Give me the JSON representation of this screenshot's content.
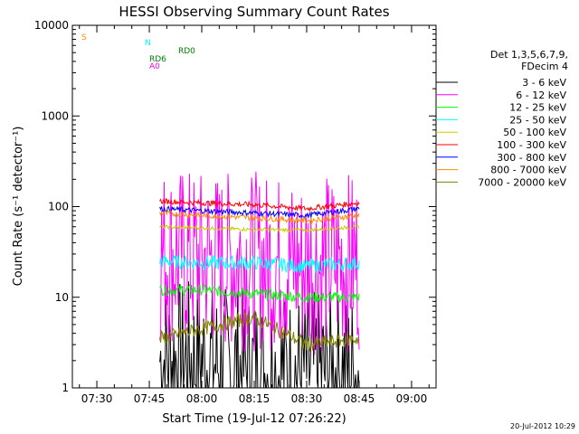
{
  "chart_data": {
    "type": "line",
    "title": "HESSI Observing Summary Count Rates",
    "xlabel": "Start Time (19-Jul-12 07:26:22)",
    "ylabel": "Count Rate (s⁻¹ detector⁻¹)",
    "yscale": "log",
    "ylim": [
      1,
      10000
    ],
    "xlim": [
      "07:23",
      "09:07"
    ],
    "x_ticks": [
      "07:30",
      "07:45",
      "08:00",
      "08:15",
      "08:30",
      "08:45",
      "09:00"
    ],
    "y_ticks": [
      "1",
      "10",
      "100",
      "1000",
      "10000"
    ],
    "grid": false,
    "legend_position": "right",
    "legend_header": [
      "Det 1,3,5,6,7,9,",
      "FDecim 4"
    ],
    "footer_date": "20-Jul-2012 10:29",
    "series": [
      {
        "name": "3 - 6 keV",
        "color": "#000000",
        "x": [
          "07:48",
          "08:00",
          "08:15",
          "08:30",
          "08:45"
        ],
        "values": [
          2,
          2,
          1.5,
          1.5,
          1.5
        ]
      },
      {
        "name": "6 - 12 keV",
        "color": "#ff00ff",
        "x": [
          "07:48",
          "08:00",
          "08:15",
          "08:30",
          "08:45"
        ],
        "values": [
          30,
          26,
          25,
          23,
          25
        ]
      },
      {
        "name": "12 - 25 keV",
        "color": "#00ff00",
        "x": [
          "07:48",
          "08:00",
          "08:15",
          "08:30",
          "08:45"
        ],
        "values": [
          12,
          12,
          11,
          10,
          10
        ]
      },
      {
        "name": "25 - 50 keV",
        "color": "#00ffff",
        "x": [
          "07:48",
          "08:00",
          "08:15",
          "08:30",
          "08:45"
        ],
        "values": [
          25,
          24,
          24,
          22,
          24
        ]
      },
      {
        "name": "50 - 100 keV",
        "color": "#cccc00",
        "x": [
          "07:48",
          "08:00",
          "08:15",
          "08:30",
          "08:45"
        ],
        "values": [
          60,
          58,
          56,
          55,
          60
        ]
      },
      {
        "name": "100 - 300 keV",
        "color": "#ff0000",
        "x": [
          "07:48",
          "08:00",
          "08:15",
          "08:30",
          "08:45"
        ],
        "values": [
          115,
          110,
          105,
          95,
          110
        ]
      },
      {
        "name": "300 - 800 keV",
        "color": "#0000ff",
        "x": [
          "07:48",
          "08:00",
          "08:15",
          "08:30",
          "08:45"
        ],
        "values": [
          95,
          90,
          85,
          80,
          95
        ]
      },
      {
        "name": "800 - 7000 keV",
        "color": "#ff8c00",
        "x": [
          "07:48",
          "08:00",
          "08:15",
          "08:30",
          "08:45"
        ],
        "values": [
          85,
          80,
          75,
          70,
          80
        ]
      },
      {
        "name": "7000 - 20000 keV",
        "color": "#808000",
        "x": [
          "07:48",
          "08:00",
          "08:15",
          "08:30",
          "08:45"
        ],
        "values": [
          3.5,
          4.5,
          6,
          3,
          3.5
        ]
      }
    ],
    "flags": [
      {
        "label": "S",
        "color": "#ff8c00"
      },
      {
        "label": "N",
        "color": "#00ffff"
      },
      {
        "label": "RD0",
        "color": "#008000"
      },
      {
        "label": "RD6",
        "color": "#008000"
      },
      {
        "label": "A0",
        "color": "#ff00ff"
      }
    ]
  }
}
